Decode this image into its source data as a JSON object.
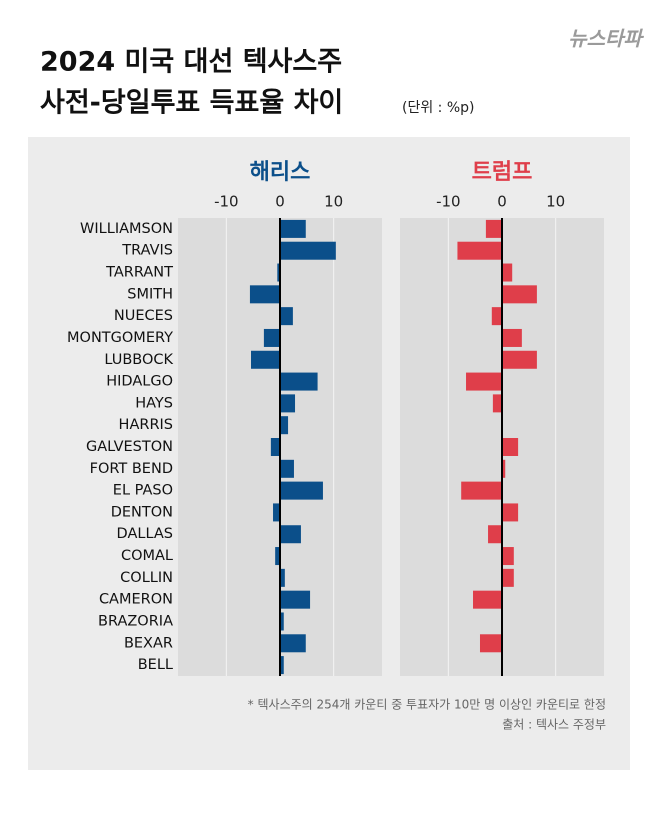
{
  "header": {
    "logo": "뉴스타파",
    "title_line1": "2024 미국 대선 텍사스주",
    "title_line2": "사전-당일투표 득표율 차이",
    "unit": "(단위 : %p)"
  },
  "footnotes": [
    "* 텍사스주의 254개 카운티 중 투표자가 10만 명 이상인 카운티로 한정",
    "출처 : 텍사스 주정부"
  ],
  "chart_data": [
    {
      "type": "bar",
      "orientation": "horizontal",
      "title": "해리스",
      "color": "#0b4f8a",
      "categories": [
        "WILLIAMSON",
        "TRAVIS",
        "TARRANT",
        "SMITH",
        "NUECES",
        "MONTGOMERY",
        "LUBBOCK",
        "HIDALGO",
        "HAYS",
        "HARRIS",
        "GALVESTON",
        "FORT BEND",
        "EL PASO",
        "DENTON",
        "DALLAS",
        "COMAL",
        "COLLIN",
        "CAMERON",
        "BRAZORIA",
        "BEXAR",
        "BELL"
      ],
      "values": [
        4.8,
        10.4,
        -0.5,
        -5.6,
        2.4,
        -3.0,
        -5.4,
        7.0,
        2.8,
        1.5,
        -1.7,
        2.6,
        8.0,
        -1.3,
        3.9,
        -0.9,
        0.9,
        5.6,
        0.7,
        4.8,
        0.7
      ],
      "xlim": [
        -19,
        19
      ],
      "xticks": [
        -10,
        0,
        10
      ],
      "grid": true
    },
    {
      "type": "bar",
      "orientation": "horizontal",
      "title": "트럼프",
      "color": "#df3e4a",
      "categories": [
        "WILLIAMSON",
        "TRAVIS",
        "TARRANT",
        "SMITH",
        "NUECES",
        "MONTGOMERY",
        "LUBBOCK",
        "HIDALGO",
        "HAYS",
        "HARRIS",
        "GALVESTON",
        "FORT BEND",
        "EL PASO",
        "DENTON",
        "DALLAS",
        "COMAL",
        "COLLIN",
        "CAMERON",
        "BRAZORIA",
        "BEXAR",
        "BELL"
      ],
      "values": [
        -3.0,
        -8.3,
        1.9,
        6.5,
        -1.9,
        3.7,
        6.5,
        -6.7,
        -1.7,
        0.1,
        3.0,
        0.6,
        -7.6,
        3.0,
        -2.6,
        2.2,
        2.2,
        -5.4,
        0,
        -4.1,
        0
      ],
      "xlim": [
        -19,
        19
      ],
      "xticks": [
        -10,
        0,
        10
      ],
      "grid": true
    }
  ]
}
